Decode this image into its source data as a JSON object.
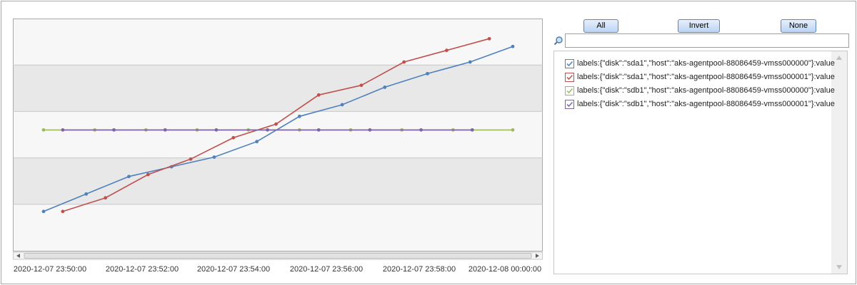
{
  "chart_data": {
    "type": "line",
    "x_ticks": [
      "2020-12-07 23:50:00",
      "2020-12-07 23:52:00",
      "2020-12-07 23:54:00",
      "2020-12-07 23:56:00",
      "2020-12-07 23:58:00",
      "2020-12-08 00:00:00"
    ],
    "series": [
      {
        "name": "labels:{\"disk\":\"sda1\",\"host\":\"aks-agentpool-88086459-vmss000000\"}:value",
        "color": "#4f81bd",
        "x": [
          0,
          1,
          2,
          3,
          4,
          5,
          6,
          7,
          8,
          9,
          10,
          11
        ],
        "y": [
          10,
          19,
          28,
          33,
          38,
          46,
          59,
          65,
          74,
          81,
          87,
          95
        ]
      },
      {
        "name": "labels:{\"disk\":\"sda1\",\"host\":\"aks-agentpool-88086459-vmss000001\"}:value",
        "color": "#c0504d",
        "x": [
          0.45,
          1.45,
          2.45,
          3.45,
          4.45,
          5.45,
          6.45,
          7.45,
          8.45,
          9.45,
          10.45
        ],
        "y": [
          10,
          17,
          29,
          37,
          48,
          55,
          70,
          75,
          87,
          93,
          99
        ]
      },
      {
        "name": "labels:{\"disk\":\"sdb1\",\"host\":\"aks-agentpool-88086459-vmss000000\"}:value",
        "color": "#9bbb59",
        "x": [
          0,
          1.2,
          2.4,
          3.6,
          4.8,
          6.0,
          7.2,
          8.4,
          9.6,
          11
        ],
        "y": [
          52,
          52,
          52,
          52,
          52,
          52,
          52,
          52,
          52,
          52
        ]
      },
      {
        "name": "labels:{\"disk\":\"sdb1\",\"host\":\"aks-agentpool-88086459-vmss000001\"}:value",
        "color": "#8064a2",
        "x": [
          0.45,
          1.65,
          2.85,
          4.05,
          5.25,
          6.45,
          7.65,
          8.85,
          10.05
        ],
        "y": [
          52,
          52,
          52,
          52,
          52,
          52,
          52,
          52,
          52
        ]
      }
    ],
    "grid": true,
    "legend_position": "right"
  },
  "controls": {
    "all_label": "All",
    "invert_label": "Invert",
    "none_label": "None",
    "search_value": "",
    "search_placeholder": ""
  },
  "legend_items": [
    {
      "label": "labels:{\"disk\":\"sda1\",\"host\":\"aks-agentpool-88086459-vmss000000\"}:value",
      "color": "#4f81bd",
      "checked": true
    },
    {
      "label": "labels:{\"disk\":\"sda1\",\"host\":\"aks-agentpool-88086459-vmss000001\"}:value",
      "color": "#c0504d",
      "checked": true
    },
    {
      "label": "labels:{\"disk\":\"sdb1\",\"host\":\"aks-agentpool-88086459-vmss000000\"}:value",
      "color": "#9bbb59",
      "checked": true
    },
    {
      "label": "labels:{\"disk\":\"sdb1\",\"host\":\"aks-agentpool-88086459-vmss000001\"}:value",
      "color": "#8064a2",
      "checked": true
    }
  ]
}
